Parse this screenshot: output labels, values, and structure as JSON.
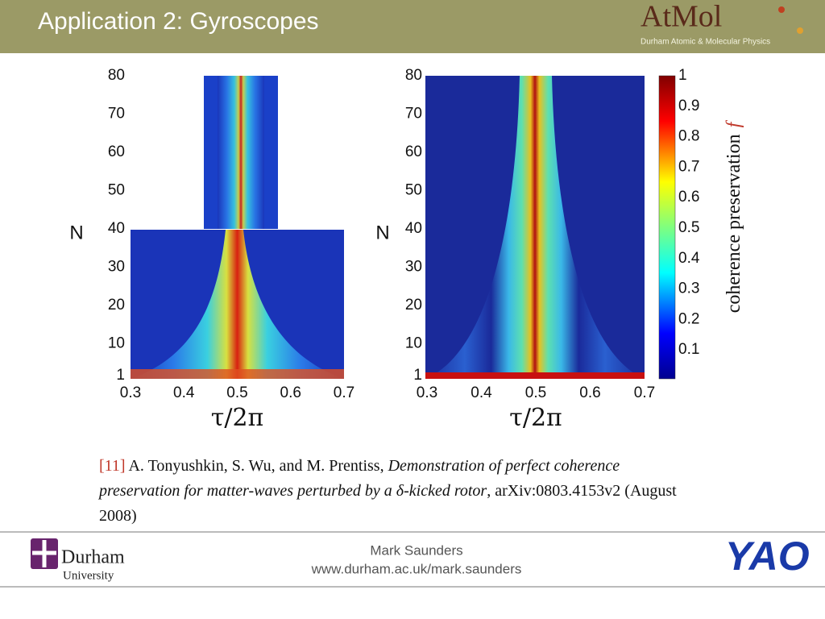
{
  "header": {
    "title": "Application 2: Gyroscopes",
    "logo": {
      "name": "AtMol",
      "subtitle": "Durham Atomic & Molecular Physics"
    }
  },
  "figures": [
    {
      "ylabel": "N",
      "xlabel": "τ/2π",
      "yticks": [
        "80",
        "70",
        "60",
        "50",
        "40",
        "30",
        "20",
        "10",
        "1"
      ],
      "xticks": [
        "0.3",
        "0.4",
        "0.5",
        "0.6",
        "0.7"
      ]
    },
    {
      "ylabel": "N",
      "xlabel": "τ/2π",
      "yticks": [
        "80",
        "70",
        "60",
        "50",
        "40",
        "30",
        "20",
        "10",
        "1"
      ],
      "xticks": [
        "0.3",
        "0.4",
        "0.5",
        "0.6",
        "0.7"
      ],
      "colorbar": {
        "label": "coherence preservation",
        "symbol": "f",
        "ticks": [
          "1",
          "0.9",
          "0.8",
          "0.7",
          "0.6",
          "0.5",
          "0.4",
          "0.3",
          "0.2",
          "0.1"
        ]
      }
    }
  ],
  "reference": {
    "number": "[11]",
    "authors": "A. Tonyushkin, S. Wu, and M. Prentiss,",
    "title": "Demonstration of perfect coherence preservation for matter-waves perturbed by a δ-kicked rotor",
    "source": ", arXiv:0803.4153v2 (August 2008)"
  },
  "footer": {
    "author": "Mark Saunders",
    "url": "www.durham.ac.uk/mark.saunders",
    "durham": {
      "name": "Durham",
      "sub": "University"
    },
    "yao": "YAO"
  }
}
